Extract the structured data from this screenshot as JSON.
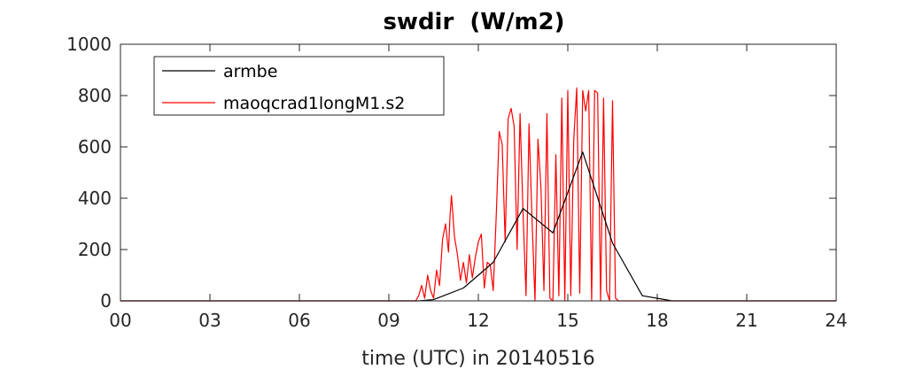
{
  "chart_data": {
    "type": "line",
    "title": "swdir  (W/m2)",
    "xlabel": "time (UTC) in 20140516",
    "ylabel": "",
    "xlim": [
      0,
      24
    ],
    "ylim": [
      0,
      1000
    ],
    "xticks": [
      0,
      3,
      6,
      9,
      12,
      15,
      18,
      21,
      24
    ],
    "xtick_labels": [
      "00",
      "03",
      "06",
      "09",
      "12",
      "15",
      "18",
      "21",
      "24"
    ],
    "yticks": [
      0,
      200,
      400,
      600,
      800,
      1000
    ],
    "ytick_labels": [
      "0",
      "200",
      "400",
      "600",
      "800",
      "1000"
    ],
    "legend_position": "top-left",
    "series": [
      {
        "name": "armbe",
        "color": "#000000",
        "x": [
          0,
          1,
          2,
          3,
          4,
          5,
          6,
          7,
          8,
          9,
          10,
          10.5,
          11.5,
          12.5,
          13.5,
          14.5,
          15.5,
          16.5,
          17.5,
          18.5,
          19.5,
          20.5,
          21.5,
          22.5,
          23.5,
          24
        ],
        "y": [
          0,
          0,
          0,
          0,
          0,
          0,
          0,
          0,
          0,
          0,
          0,
          5,
          50,
          150,
          360,
          265,
          580,
          225,
          20,
          0,
          0,
          0,
          0,
          0,
          0,
          0
        ]
      },
      {
        "name": "maoqcrad1longM1.s2",
        "color": "#ff0000",
        "x": [
          0,
          9.9,
          10.0,
          10.1,
          10.2,
          10.3,
          10.4,
          10.5,
          10.6,
          10.7,
          10.8,
          10.9,
          11.0,
          11.05,
          11.1,
          11.2,
          11.3,
          11.4,
          11.5,
          11.6,
          11.7,
          11.8,
          11.9,
          12.0,
          12.1,
          12.2,
          12.3,
          12.4,
          12.5,
          12.6,
          12.7,
          12.8,
          12.9,
          13.0,
          13.1,
          13.2,
          13.3,
          13.4,
          13.5,
          13.6,
          13.7,
          13.8,
          13.9,
          14.0,
          14.1,
          14.2,
          14.3,
          14.4,
          14.5,
          14.6,
          14.7,
          14.8,
          14.9,
          15.0,
          15.1,
          15.2,
          15.3,
          15.4,
          15.5,
          15.6,
          15.7,
          15.8,
          15.9,
          16.0,
          16.1,
          16.2,
          16.3,
          16.4,
          16.5,
          16.6,
          16.7,
          16.8,
          16.9,
          17.0,
          17.1,
          17.2,
          17.3,
          24
        ],
        "y": [
          0,
          0,
          20,
          60,
          10,
          100,
          40,
          10,
          120,
          60,
          240,
          300,
          190,
          330,
          410,
          250,
          180,
          80,
          150,
          70,
          180,
          90,
          170,
          230,
          260,
          50,
          150,
          140,
          40,
          330,
          660,
          610,
          230,
          710,
          750,
          680,
          200,
          730,
          340,
          20,
          690,
          320,
          0,
          630,
          440,
          40,
          730,
          10,
          0,
          570,
          20,
          790,
          0,
          820,
          20,
          630,
          830,
          30,
          820,
          740,
          820,
          0,
          820,
          810,
          0,
          790,
          40,
          0,
          780,
          10,
          0,
          0,
          0,
          0,
          0,
          0,
          0,
          0
        ]
      }
    ]
  }
}
